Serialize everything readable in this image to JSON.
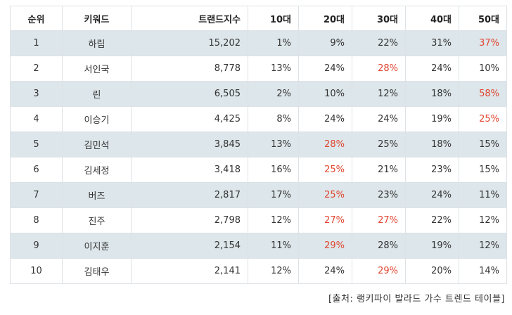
{
  "table": {
    "headers": [
      "순위",
      "키워드",
      "트랜드지수",
      "10대",
      "20대",
      "30대",
      "40대",
      "50대"
    ],
    "rows": [
      {
        "rank": "1",
        "keyword": "하림",
        "index": "15,202",
        "ages": [
          "1%",
          "9%",
          "22%",
          "31%",
          "37%"
        ],
        "highlight": [
          4
        ]
      },
      {
        "rank": "2",
        "keyword": "서인국",
        "index": "8,778",
        "ages": [
          "13%",
          "24%",
          "28%",
          "24%",
          "10%"
        ],
        "highlight": [
          2
        ]
      },
      {
        "rank": "3",
        "keyword": "린",
        "index": "6,505",
        "ages": [
          "2%",
          "10%",
          "12%",
          "18%",
          "58%"
        ],
        "highlight": [
          4
        ]
      },
      {
        "rank": "4",
        "keyword": "이승기",
        "index": "4,425",
        "ages": [
          "8%",
          "24%",
          "24%",
          "19%",
          "25%"
        ],
        "highlight": [
          4
        ]
      },
      {
        "rank": "5",
        "keyword": "김민석",
        "index": "3,845",
        "ages": [
          "13%",
          "28%",
          "25%",
          "18%",
          "15%"
        ],
        "highlight": [
          1
        ]
      },
      {
        "rank": "6",
        "keyword": "김세정",
        "index": "3,418",
        "ages": [
          "16%",
          "25%",
          "21%",
          "23%",
          "15%"
        ],
        "highlight": [
          1
        ]
      },
      {
        "rank": "7",
        "keyword": "버즈",
        "index": "2,817",
        "ages": [
          "17%",
          "25%",
          "23%",
          "24%",
          "11%"
        ],
        "highlight": [
          1
        ]
      },
      {
        "rank": "8",
        "keyword": "진주",
        "index": "2,798",
        "ages": [
          "12%",
          "27%",
          "27%",
          "22%",
          "12%"
        ],
        "highlight": [
          1,
          2
        ]
      },
      {
        "rank": "9",
        "keyword": "이지훈",
        "index": "2,154",
        "ages": [
          "11%",
          "29%",
          "28%",
          "19%",
          "12%"
        ],
        "highlight": [
          1
        ]
      },
      {
        "rank": "10",
        "keyword": "김태우",
        "index": "2,141",
        "ages": [
          "12%",
          "24%",
          "29%",
          "20%",
          "14%"
        ],
        "highlight": [
          2
        ]
      }
    ]
  },
  "source": "[출처: 랭키파이 발라드 가수 트렌드 테이블]",
  "colors": {
    "highlight": "#e0452f",
    "stripe": "#dde6ea",
    "border": "#dde2e6"
  }
}
